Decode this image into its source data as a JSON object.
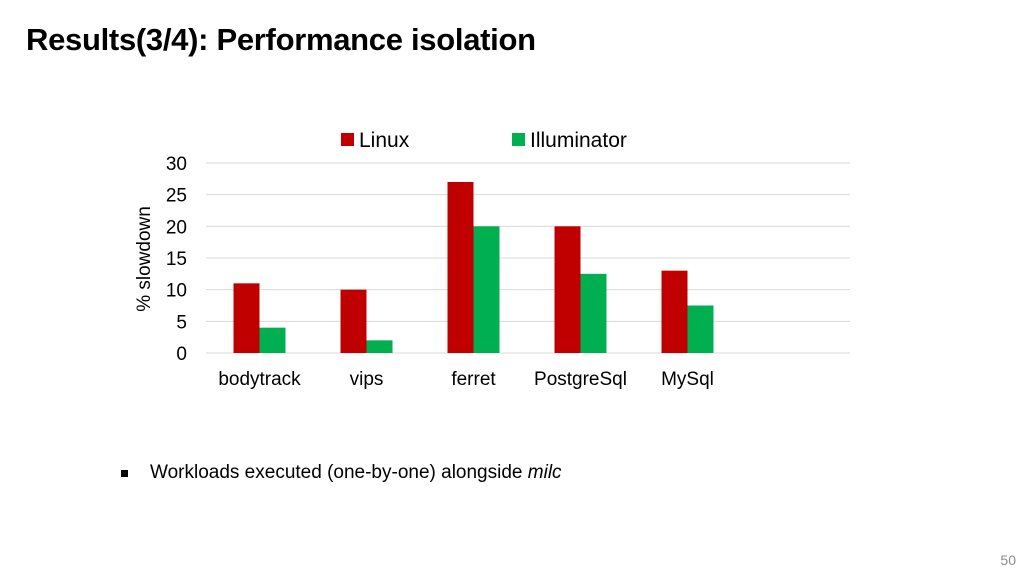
{
  "slide": {
    "title": "Results(3/4): Performance isolation",
    "bullet_text": "Workloads executed (one-by-one) alongside ",
    "bullet_emph": "milc",
    "page_number": "50"
  },
  "chart_data": {
    "type": "bar",
    "categories": [
      "bodytrack",
      "vips",
      "ferret",
      "PostgreSql",
      "MySql"
    ],
    "series": [
      {
        "name": "Linux",
        "values": [
          11,
          10,
          27,
          20,
          13
        ],
        "color": "#c00000"
      },
      {
        "name": "Illuminator",
        "values": [
          4,
          2,
          20,
          12.5,
          7.5
        ],
        "color": "#00b050"
      }
    ],
    "title": "",
    "xlabel": "",
    "ylabel": "% slowdown",
    "ylim": [
      0,
      30
    ],
    "yticks": [
      0,
      5,
      10,
      15,
      20,
      25,
      30
    ],
    "grid": true,
    "legend_position": "top"
  }
}
